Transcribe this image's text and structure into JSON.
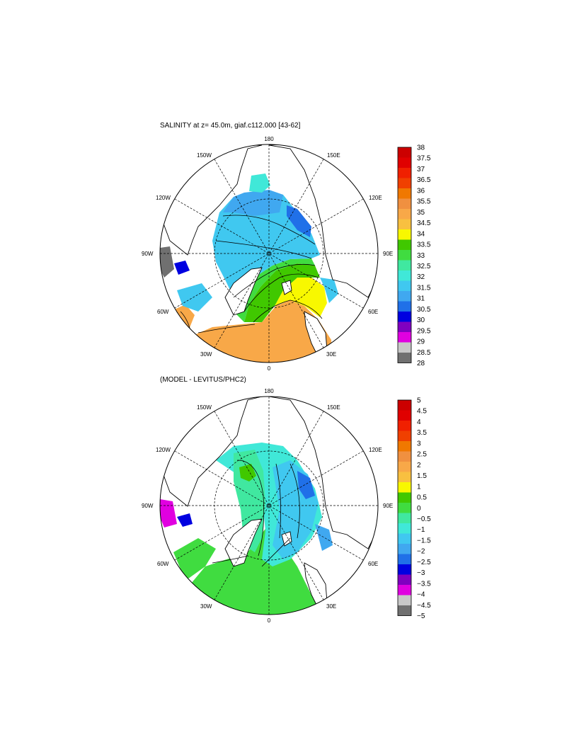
{
  "panels": [
    {
      "title": "SALINITY at z=  45.0m, giaf.c112.000 [43-62]",
      "lon_labels": {
        "top": "180",
        "bottom": "0",
        "left": "90W",
        "right": "90E",
        "upper_left_1": "150W",
        "upper_left_2": "120W",
        "upper_right_1": "150E",
        "upper_right_2": "120E",
        "lower_left_1": "60W",
        "lower_left_2": "30W",
        "lower_right_1": "60E",
        "lower_right_2": "30E"
      },
      "colorbar": {
        "labels": [
          "38",
          "37.5",
          "37",
          "36.5",
          "36",
          "35.5",
          "35",
          "34.5",
          "34",
          "33.5",
          "33",
          "32.5",
          "32",
          "31.5",
          "31",
          "30.5",
          "30",
          "29.5",
          "29",
          "28.5",
          "28"
        ],
        "colors": [
          "#cc0000",
          "#e00000",
          "#f02000",
          "#f04000",
          "#f07800",
          "#f09040",
          "#f8a848",
          "#f8c040",
          "#f8f800",
          "#40c800",
          "#40dc40",
          "#40e8a0",
          "#40e8d8",
          "#40c8f0",
          "#40a8f0",
          "#2070e8",
          "#0000e0",
          "#8000c0",
          "#e000e0",
          "#c8c8c8",
          "#707070"
        ]
      }
    },
    {
      "title": "(MODEL - LEVITUS/PHC2)",
      "lon_labels": {
        "top": "180",
        "bottom": "0",
        "left": "90W",
        "right": "90E",
        "upper_left_1": "150W",
        "upper_left_2": "120W",
        "upper_right_1": "150E",
        "upper_right_2": "120E",
        "lower_left_1": "60W",
        "lower_left_2": "30W",
        "lower_right_1": "60E",
        "lower_right_2": "30E"
      },
      "colorbar": {
        "labels": [
          "5",
          "4.5",
          "4",
          "3.5",
          "3",
          "2.5",
          "2",
          "1.5",
          "1",
          "0.5",
          "0",
          "−0.5",
          "−1",
          "−1.5",
          "−2",
          "−2.5",
          "−3",
          "−3.5",
          "−4",
          "−4.5",
          "−5"
        ],
        "colors": [
          "#cc0000",
          "#e00000",
          "#f02000",
          "#f04000",
          "#f07800",
          "#f09040",
          "#f8a848",
          "#f8c040",
          "#f8f800",
          "#40c800",
          "#40dc40",
          "#40e8a0",
          "#40e8d8",
          "#40c8f0",
          "#40a8f0",
          "#2070e8",
          "#0000e0",
          "#8000c0",
          "#e000e0",
          "#c8c8c8",
          "#707070"
        ]
      }
    }
  ]
}
